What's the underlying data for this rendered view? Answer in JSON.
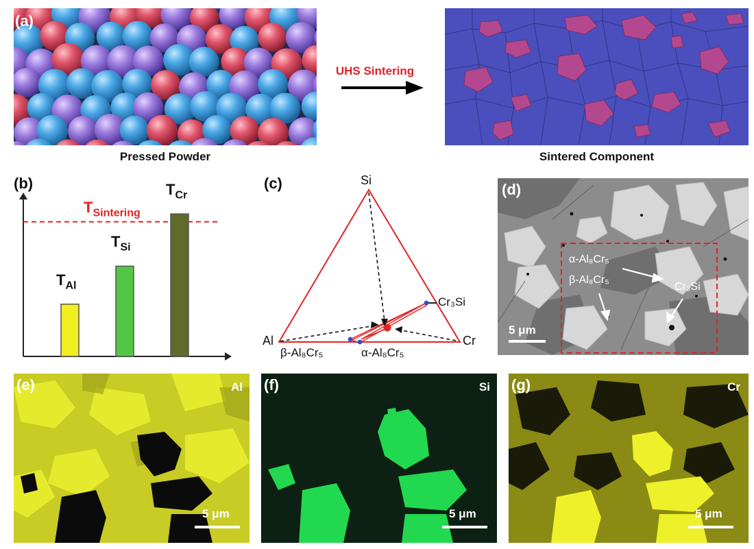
{
  "panel_a": {
    "tag": "(a)",
    "left_caption": "Pressed Powder",
    "arrow_label": "UHS Sintering",
    "right_caption": "Sintered Component"
  },
  "panel_b": {
    "tag": "(b)",
    "threshold_label": "T",
    "threshold_sub": "Sintering",
    "bars": [
      {
        "label": "T",
        "sub": "Al",
        "value": 0.33,
        "color": "#f2ee1f"
      },
      {
        "label": "T",
        "sub": "Si",
        "value": 0.57,
        "color": "#53c646"
      },
      {
        "label": "T",
        "sub": "Cr",
        "value": 0.9,
        "color": "#5f6b2b"
      }
    ],
    "threshold_value": 0.85,
    "colors": {
      "threshold": "#e02424"
    }
  },
  "panel_c": {
    "tag": "(c)",
    "vertices": {
      "top": "Si",
      "left": "Al",
      "right": "Cr"
    },
    "points": {
      "cr3si": "Cr₃Si",
      "beta": "β-Al₈Cr₅",
      "alpha": "α-Al₈Cr₅"
    }
  },
  "panel_d": {
    "tag": "(d)",
    "labels": {
      "alpha": "α-Al₈Cr₅",
      "beta": "β-Al₈Cr₅",
      "cr3si": "Cr₃Si"
    },
    "scale": "5 μm"
  },
  "panel_e": {
    "tag": "(e)",
    "element": "Al",
    "scale": "5 μm"
  },
  "panel_f": {
    "tag": "(f)",
    "element": "Si",
    "scale": "5 μm"
  },
  "panel_g": {
    "tag": "(g)",
    "element": "Cr",
    "scale": "5 μm"
  }
}
